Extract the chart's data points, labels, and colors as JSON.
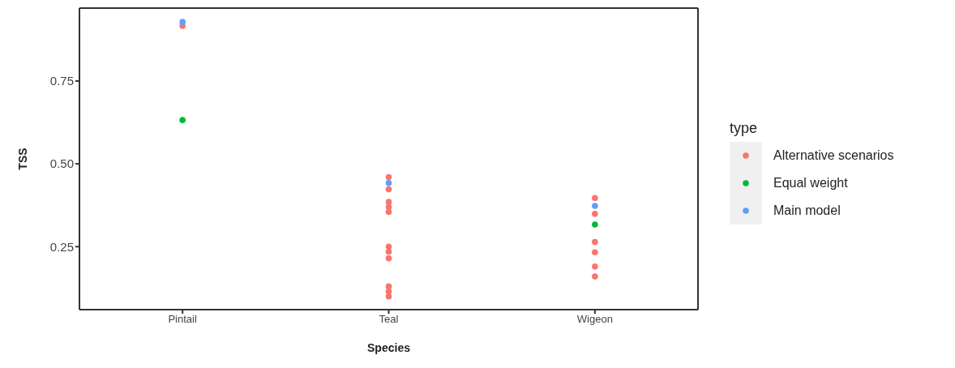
{
  "chart_data": {
    "type": "scatter",
    "xlabel": "Species",
    "ylabel": "TSS",
    "legend_title": "type",
    "categories": [
      "Pintail",
      "Teal",
      "Wigeon"
    ],
    "ylim": [
      0.06,
      0.97
    ],
    "yticks": [
      {
        "value": 0.25,
        "label": "0.25"
      },
      {
        "value": 0.5,
        "label": "0.50"
      },
      {
        "value": 0.75,
        "label": "0.75"
      }
    ],
    "grid": false,
    "legend": "right",
    "marker": "circle",
    "series": [
      {
        "name": "Alternative scenarios",
        "color": "#f8766d",
        "x": [
          "Pintail",
          "Teal",
          "Teal",
          "Teal",
          "Teal",
          "Teal",
          "Teal",
          "Teal",
          "Teal",
          "Teal",
          "Teal",
          "Teal",
          "Wigeon",
          "Wigeon",
          "Wigeon",
          "Wigeon",
          "Wigeon",
          "Wigeon"
        ],
        "values": [
          0.916,
          0.46,
          0.423,
          0.385,
          0.37,
          0.355,
          0.25,
          0.235,
          0.215,
          0.13,
          0.115,
          0.1,
          0.397,
          0.349,
          0.264,
          0.233,
          0.19,
          0.16
        ]
      },
      {
        "name": "Equal weight",
        "color": "#00ba38",
        "x": [
          "Pintail",
          "Wigeon"
        ],
        "values": [
          0.632,
          0.317
        ]
      },
      {
        "name": "Main model",
        "color": "#619cff",
        "x": [
          "Pintail",
          "Teal",
          "Wigeon"
        ],
        "values": [
          0.928,
          0.442,
          0.373
        ]
      }
    ]
  }
}
